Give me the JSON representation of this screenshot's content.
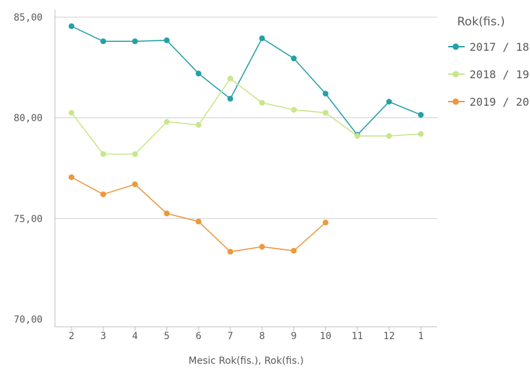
{
  "chart_data": {
    "type": "line",
    "xlabel": "Mesic Rok(fis.), Rok(fis.)",
    "ylabel": "",
    "categories": [
      "2",
      "3",
      "4",
      "5",
      "6",
      "7",
      "8",
      "9",
      "10",
      "11",
      "12",
      "1"
    ],
    "ylim": [
      70,
      85
    ],
    "yticks": [
      "70,00",
      "75,00",
      "80,00",
      "85,00"
    ],
    "ytick_values": [
      70,
      75,
      80,
      85
    ],
    "grid": true,
    "legend": {
      "title": "Rok(fis.)",
      "position": "right"
    },
    "series": [
      {
        "name": "2017 / 18",
        "color": "#26a0a7",
        "values": [
          84.55,
          83.8,
          83.8,
          83.85,
          82.2,
          80.95,
          83.95,
          82.95,
          81.2,
          79.15,
          80.8,
          80.15
        ]
      },
      {
        "name": "2018 / 19",
        "color": "#c8e68c",
        "values": [
          80.25,
          78.2,
          78.2,
          79.8,
          79.65,
          81.95,
          80.75,
          80.4,
          80.25,
          79.1,
          79.1,
          79.2
        ]
      },
      {
        "name": "2019 / 20",
        "color": "#ec983d",
        "values": [
          77.05,
          76.2,
          76.7,
          75.25,
          74.85,
          73.35,
          73.6,
          73.4,
          74.8,
          null,
          null,
          null
        ]
      }
    ]
  }
}
